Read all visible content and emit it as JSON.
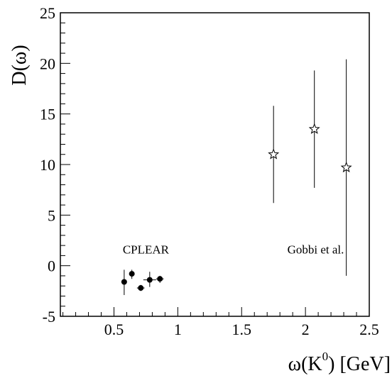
{
  "chart_data": {
    "type": "scatter",
    "title": "",
    "xlabel": "ω(K",
    "xlabel_sup": "0",
    "xlabel_unit": ") [GeV]",
    "ylabel": "D(ω)",
    "xlim": [
      0.08,
      2.5
    ],
    "ylim": [
      -5,
      25
    ],
    "xticks": [
      {
        "value": 0.5,
        "label": "0.5"
      },
      {
        "value": 1,
        "label": "1"
      },
      {
        "value": 1.5,
        "label": "1.5"
      },
      {
        "value": 2,
        "label": "2"
      },
      {
        "value": 2.5,
        "label": "2.5"
      }
    ],
    "yticks": [
      {
        "value": -5,
        "label": "-5"
      },
      {
        "value": 0,
        "label": "0"
      },
      {
        "value": 5,
        "label": "5"
      },
      {
        "value": 10,
        "label": "10"
      },
      {
        "value": 15,
        "label": "15"
      },
      {
        "value": 20,
        "label": "20"
      },
      {
        "value": 25,
        "label": "25"
      }
    ],
    "grid": false,
    "series": [
      {
        "name": "CPLEAR",
        "marker": "filled-circle",
        "points": [
          {
            "x": 0.58,
            "y": -1.6,
            "yerr_low": 1.3,
            "yerr_high": 1.2,
            "xerr": 0
          },
          {
            "x": 0.64,
            "y": -0.8,
            "yerr_low": 0.5,
            "yerr_high": 0.4,
            "xerr": 0
          },
          {
            "x": 0.71,
            "y": -2.2,
            "yerr_low": 0.3,
            "yerr_high": 0.3,
            "xerr": 0.03
          },
          {
            "x": 0.78,
            "y": -1.4,
            "yerr_low": 0.7,
            "yerr_high": 0.8,
            "xerr": 0.05
          },
          {
            "x": 0.86,
            "y": -1.3,
            "yerr_low": 0.4,
            "yerr_high": 0.3,
            "xerr": 0.03
          }
        ]
      },
      {
        "name": "Gobbi et al.",
        "marker": "open-star",
        "points": [
          {
            "x": 1.75,
            "y": 11.0,
            "yerr_low": 4.8,
            "yerr_high": 4.8,
            "xerr": 0
          },
          {
            "x": 2.07,
            "y": 13.5,
            "yerr_low": 5.8,
            "yerr_high": 5.8,
            "xerr": 0
          },
          {
            "x": 2.32,
            "y": 9.7,
            "yerr_low": 10.7,
            "yerr_high": 10.7,
            "xerr": 0
          }
        ]
      }
    ],
    "annotations": [
      {
        "text": "CPLEAR",
        "x": 0.75,
        "y": 1.2
      },
      {
        "text": "Gobbi et al.",
        "x": 2.08,
        "y": 1.2
      }
    ]
  }
}
